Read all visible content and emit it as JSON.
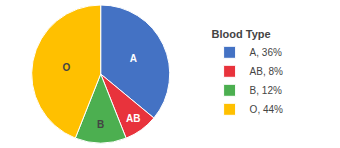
{
  "chart_data": {
    "type": "pie",
    "categories": [
      "A",
      "AB",
      "B",
      "O"
    ],
    "values": [
      36,
      8,
      12,
      44
    ],
    "colors": [
      "#4472C4",
      "#E8333C",
      "#4CAF50",
      "#FFC000"
    ],
    "legend_title": "Blood Type",
    "legend_labels": [
      "A, 36%",
      "AB, 8%",
      "B, 12%",
      "O, 44%"
    ],
    "legend": "right"
  }
}
